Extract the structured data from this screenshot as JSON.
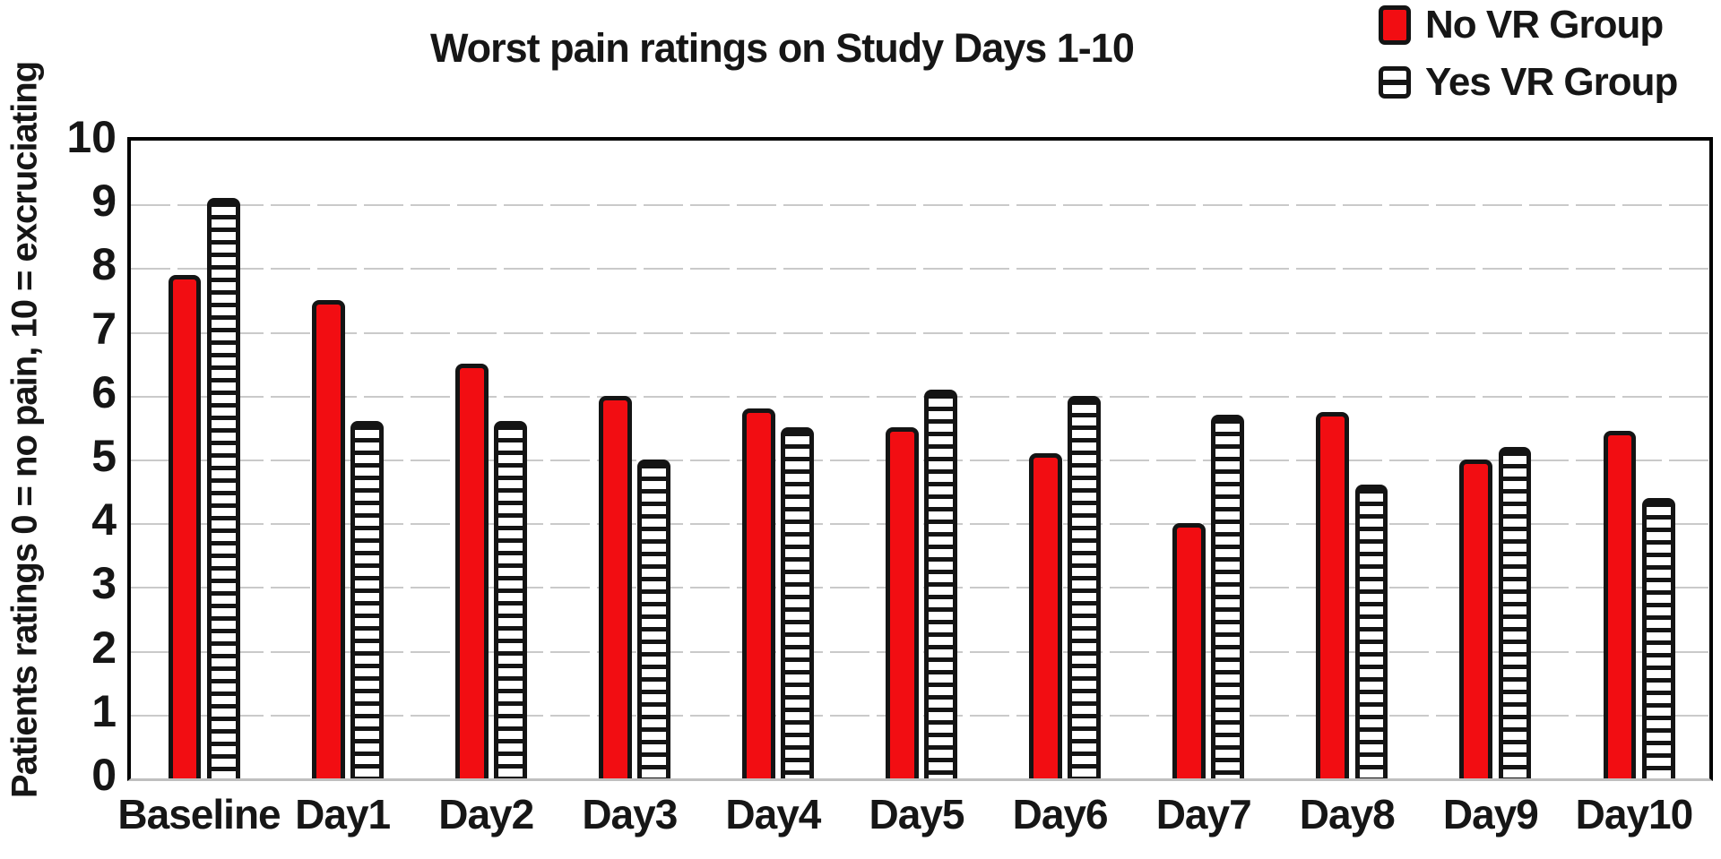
{
  "chart_data": {
    "type": "bar",
    "title": "Worst pain ratings on Study Days 1-10",
    "ylabel": "Patients ratings 0 = no pain, 10 = excruciating",
    "xlabel": "",
    "categories": [
      "Baseline",
      "Day1",
      "Day2",
      "Day3",
      "Day4",
      "Day5",
      "Day6",
      "Day7",
      "Day8",
      "Day9",
      "Day10"
    ],
    "series": [
      {
        "name": "No VR Group",
        "style": "solid-red",
        "color": "#f20d12",
        "values": [
          7.9,
          7.5,
          6.5,
          6.0,
          5.8,
          5.5,
          5.1,
          4.0,
          5.75,
          5.0,
          5.45
        ]
      },
      {
        "name": "Yes VR Group",
        "style": "striped",
        "color": "#ffffff",
        "values": [
          9.1,
          5.6,
          5.6,
          5.0,
          5.5,
          6.1,
          6.0,
          5.7,
          4.6,
          5.2,
          4.4
        ]
      }
    ],
    "ylim": [
      0,
      10
    ],
    "yticks": [
      0,
      1,
      2,
      3,
      4,
      5,
      6,
      7,
      8,
      9,
      10
    ],
    "grid": true,
    "legend_position": "top-right",
    "colors": {
      "bar_red": "#f20d12",
      "bar_outline": "#141414",
      "gridline": "#cacaca",
      "frame": "#000000",
      "baseline_axis": "#bfbfbf",
      "text": "#161616",
      "background": "#ffffff"
    }
  }
}
